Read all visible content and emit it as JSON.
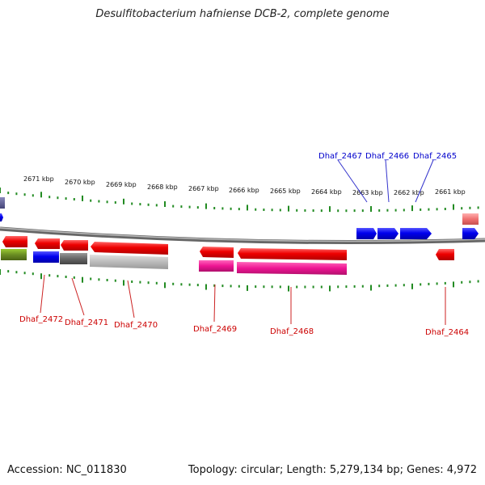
{
  "title": "Desulfitobacterium hafniense DCB-2, complete genome",
  "footer": {
    "accession": "Accession: NC_011830",
    "info": "Topology: circular; Length: 5,279,134 bp; Genes: 4,972"
  },
  "scale": {
    "labels": [
      "2671 kbp",
      "2670 kbp",
      "2669 kbp",
      "2668 kbp",
      "2667 kbp",
      "2666 kbp",
      "2665 kbp",
      "2664 kbp",
      "2663 kbp",
      "2662 kbp",
      "2661 kbp"
    ]
  },
  "gene_labels": [
    {
      "text": "Dhaf_2467",
      "strand": "top"
    },
    {
      "text": "Dhaf_2466",
      "strand": "top"
    },
    {
      "text": "Dhaf_2465",
      "strand": "top"
    },
    {
      "text": "Dhaf_2472",
      "strand": "bottom"
    },
    {
      "text": "Dhaf_2471",
      "strand": "bottom"
    },
    {
      "text": "Dhaf_2470",
      "strand": "bottom"
    },
    {
      "text": "Dhaf_2469",
      "strand": "bottom"
    },
    {
      "text": "Dhaf_2468",
      "strand": "bottom"
    },
    {
      "text": "Dhaf_2464",
      "strand": "bottom"
    }
  ],
  "colors": {
    "forward_gene": "#0000ee",
    "reverse_gene": "#ee0000",
    "top_label": "#0000cc",
    "bottom_label": "#cc0000",
    "backbone": "#888888",
    "tick": "#228b22"
  }
}
